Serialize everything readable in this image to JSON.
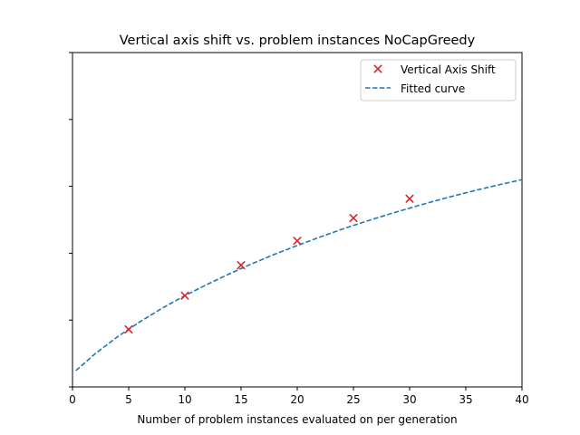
{
  "chart_data": {
    "type": "scatter",
    "title": "Vertical axis shift vs. problem instances NoCapGreedy",
    "xlabel": "Number of problem instances evaluated on per generation",
    "ylabel": "",
    "xlim": [
      0,
      40
    ],
    "ylim": [
      0,
      1
    ],
    "x_ticks": [
      0,
      5,
      10,
      15,
      20,
      25,
      30,
      35,
      40
    ],
    "y_ticks": [
      0,
      0.2,
      0.4,
      0.6,
      0.8,
      1.0
    ],
    "y_tick_labels_visible": false,
    "grid": false,
    "legend_position": "top-right",
    "colors": {
      "points": "#d62728",
      "curve": "#1f77b4"
    },
    "series": [
      {
        "name": "Vertical Axis Shift",
        "kind": "scatter",
        "marker": "x",
        "x": [
          5,
          10,
          15,
          20,
          25,
          30
        ],
        "y": [
          0.172,
          0.273,
          0.364,
          0.437,
          0.505,
          0.563
        ]
      },
      {
        "name": "Fitted curve",
        "kind": "line",
        "style": "dashed",
        "x": [
          0.3,
          2,
          4,
          6,
          8,
          10,
          12,
          14,
          16,
          18,
          20,
          22,
          24,
          26,
          28,
          30,
          32,
          34,
          36,
          38,
          40
        ],
        "y": [
          0.049,
          0.099,
          0.15,
          0.195,
          0.236,
          0.273,
          0.307,
          0.339,
          0.369,
          0.397,
          0.423,
          0.448,
          0.472,
          0.494,
          0.515,
          0.535,
          0.554,
          0.572,
          0.589,
          0.605,
          0.62
        ]
      }
    ]
  }
}
